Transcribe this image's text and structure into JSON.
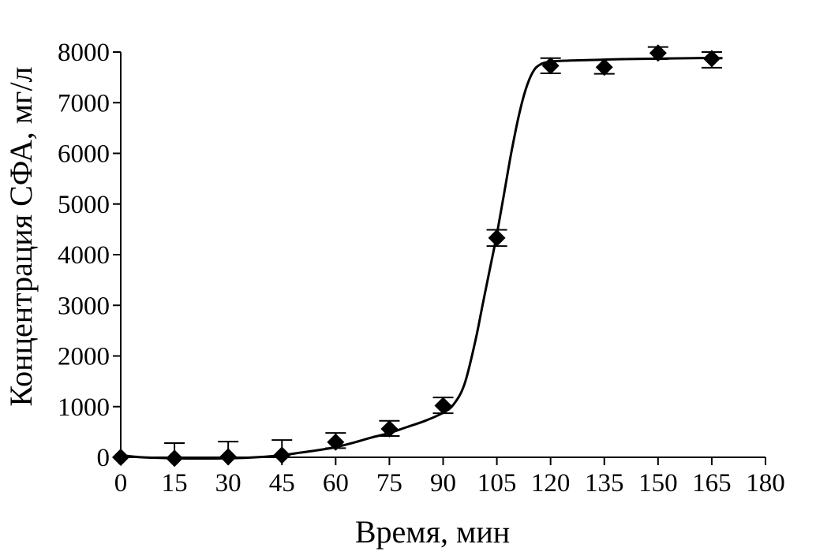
{
  "chart_data": {
    "type": "scatter",
    "title": "",
    "xlabel": "Время, мин",
    "ylabel": "Концентрация СФА, мг/л",
    "xlim": [
      0,
      180
    ],
    "ylim": [
      0,
      8000
    ],
    "xticks": [
      0,
      15,
      30,
      45,
      60,
      75,
      90,
      105,
      120,
      135,
      150,
      165,
      180
    ],
    "yticks": [
      0,
      1000,
      2000,
      3000,
      4000,
      5000,
      6000,
      7000,
      8000
    ],
    "xtick_labels": [
      "0",
      "15",
      "30",
      "45",
      "60",
      "75",
      "90",
      "105",
      "120",
      "135",
      "150",
      "165",
      "180"
    ],
    "ytick_labels": [
      "0",
      "1000",
      "2000",
      "3000",
      "4000",
      "5000",
      "6000",
      "7000",
      "8000"
    ],
    "grid": false,
    "legend": "none",
    "series": [
      {
        "marker": "diamond",
        "color": "#000000",
        "x": [
          0,
          15,
          30,
          45,
          60,
          75,
          90,
          105,
          120,
          135,
          150,
          165
        ],
        "y": [
          0,
          -20,
          10,
          40,
          300,
          560,
          1020,
          4330,
          7730,
          7700,
          7980,
          7870
        ],
        "error_low": [
          0,
          0,
          0,
          0,
          120,
          140,
          150,
          160,
          150,
          130,
          120,
          180
        ],
        "error_high": [
          0,
          300,
          300,
          300,
          180,
          160,
          160,
          160,
          150,
          0,
          120,
          130
        ]
      }
    ],
    "fit_curve": {
      "type": "sigmoid",
      "color": "#000000",
      "x": [
        0,
        5,
        10,
        15,
        20,
        25,
        30,
        35,
        40,
        45,
        50,
        55,
        60,
        65,
        70,
        75,
        80,
        85,
        90,
        93,
        96,
        99,
        101,
        103,
        105,
        107,
        109,
        111,
        113,
        115,
        117,
        120,
        125,
        130,
        140,
        150,
        160,
        168
      ],
      "y": [
        40,
        5,
        -10,
        -20,
        -25,
        -25,
        -20,
        -10,
        10,
        40,
        90,
        140,
        200,
        290,
        390,
        480,
        600,
        720,
        880,
        1050,
        1450,
        2300,
        3000,
        3700,
        4400,
        5200,
        6000,
        6700,
        7250,
        7600,
        7750,
        7810,
        7830,
        7840,
        7860,
        7870,
        7880,
        7880
      ]
    }
  }
}
